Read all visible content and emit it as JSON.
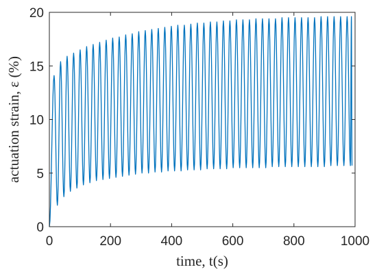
{
  "chart_data": {
    "type": "line",
    "title": "",
    "xlabel": "time, t(s)",
    "ylabel": "actuation strain, ε (%)",
    "xlim": [
      0,
      1000
    ],
    "ylim": [
      0,
      20
    ],
    "xticks": [
      0,
      200,
      400,
      600,
      800,
      1000
    ],
    "yticks": [
      0,
      5,
      10,
      15,
      20
    ],
    "xtick_labels": [
      "0",
      "200",
      "400",
      "600",
      "800",
      "1000"
    ],
    "ytick_labels": [
      "0",
      "5",
      "10",
      "15",
      "20"
    ],
    "grid": false,
    "box": true,
    "series": [
      {
        "color": "#0072BD",
        "signal": "periodic actuation strain, triangular-like cycles",
        "period_s": 21.3,
        "t_start": 0,
        "t_end": 990,
        "peak_t": [
          15.5,
          36.8,
          58.1,
          79.4,
          100.7,
          122.0,
          143.3,
          164.6,
          185.9,
          207.2,
          228.5,
          249.8,
          271.1,
          292.4,
          313.7,
          335.0,
          356.3,
          377.6,
          398.9,
          420.2,
          441.5,
          462.8,
          484.1,
          505.4,
          526.7,
          548.0,
          569.3,
          590.6,
          611.9,
          633.2,
          654.5,
          675.8,
          697.1,
          718.4,
          739.7,
          761.0,
          782.3,
          803.6,
          824.9,
          846.2,
          867.5,
          888.8,
          910.1,
          931.4,
          952.7,
          974.0,
          988.0
        ],
        "peak_values": [
          14.1,
          15.4,
          15.9,
          16.2,
          16.5,
          16.8,
          17.0,
          17.2,
          17.4,
          17.6,
          17.7,
          17.9,
          18.0,
          18.2,
          18.3,
          18.4,
          18.5,
          18.6,
          18.7,
          18.8,
          18.8,
          18.9,
          19.0,
          19.0,
          19.1,
          19.1,
          19.2,
          19.2,
          19.3,
          19.3,
          19.3,
          19.4,
          19.4,
          19.4,
          19.4,
          19.5,
          19.5,
          19.5,
          19.5,
          19.5,
          19.5,
          19.6,
          19.6,
          19.6,
          19.6,
          19.6,
          19.6
        ],
        "valley_t": [
          0,
          26.2,
          47.5,
          68.8,
          90.1,
          111.4,
          132.7,
          154.0,
          175.3,
          196.6,
          217.9,
          239.2,
          260.5,
          281.8,
          303.1,
          324.4,
          345.7,
          367.0,
          388.3,
          409.6,
          430.9,
          452.2,
          473.5,
          494.8,
          516.1,
          537.4,
          558.7,
          580.0,
          601.3,
          622.6,
          643.9,
          665.2,
          686.5,
          707.8,
          729.1,
          750.4,
          771.7,
          793.0,
          814.3,
          835.6,
          856.9,
          878.2,
          899.5,
          920.8,
          942.1,
          963.4,
          984.7,
          990.0
        ],
        "valley_values": [
          0.0,
          2.0,
          2.8,
          3.3,
          3.6,
          3.9,
          4.1,
          4.3,
          4.4,
          4.5,
          4.6,
          4.7,
          4.8,
          4.9,
          5.0,
          5.0,
          5.1,
          5.1,
          5.2,
          5.2,
          5.2,
          5.3,
          5.3,
          5.3,
          5.4,
          5.4,
          5.4,
          5.4,
          5.5,
          5.5,
          5.5,
          5.5,
          5.5,
          5.5,
          5.6,
          5.6,
          5.6,
          5.6,
          5.6,
          5.6,
          5.6,
          5.6,
          5.6,
          5.7,
          5.7,
          5.7,
          5.7,
          5.7
        ]
      }
    ]
  }
}
